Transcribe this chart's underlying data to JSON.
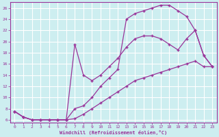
{
  "bg_color": "#cdeef0",
  "grid_color": "#aadddd",
  "line_color": "#993399",
  "xlabel": "Windchill (Refroidissement éolien,°C)",
  "xlim": [
    -0.5,
    23.5
  ],
  "ylim": [
    5.5,
    27
  ],
  "yticks": [
    6,
    8,
    10,
    12,
    14,
    16,
    18,
    20,
    22,
    24,
    26
  ],
  "xticks": [
    0,
    1,
    2,
    3,
    4,
    5,
    6,
    7,
    8,
    9,
    10,
    11,
    12,
    13,
    14,
    15,
    16,
    17,
    18,
    19,
    20,
    21,
    22,
    23
  ],
  "line1_x": [
    0,
    1,
    2,
    3,
    4,
    5,
    6,
    7,
    8,
    9,
    10,
    11,
    12,
    13,
    14,
    15,
    16,
    17,
    18,
    19,
    20,
    21,
    22,
    23
  ],
  "line1_y": [
    7.5,
    6.5,
    6.0,
    6.0,
    6.0,
    6.0,
    6.0,
    6.2,
    7.0,
    8.0,
    9.0,
    10.0,
    11.0,
    12.0,
    13.0,
    13.5,
    14.0,
    14.5,
    15.0,
    15.5,
    16.0,
    16.5,
    15.5,
    15.5
  ],
  "line2_x": [
    0,
    1,
    2,
    3,
    4,
    5,
    6,
    7,
    8,
    9,
    10,
    11,
    12,
    13,
    14,
    15,
    16,
    17,
    18,
    19,
    20,
    21,
    22,
    23
  ],
  "line2_y": [
    7.5,
    6.5,
    6.0,
    6.0,
    6.0,
    6.0,
    6.0,
    19.5,
    14.0,
    13.0,
    14.0,
    15.5,
    17.0,
    19.0,
    20.5,
    21.0,
    21.0,
    20.5,
    19.5,
    18.5,
    20.5,
    22.0,
    17.5,
    15.5
  ],
  "line3_x": [
    0,
    1,
    2,
    3,
    4,
    5,
    6,
    7,
    8,
    9,
    10,
    11,
    12,
    13,
    14,
    15,
    16,
    17,
    18,
    19,
    20,
    21,
    22,
    23
  ],
  "line3_y": [
    7.5,
    6.5,
    6.0,
    6.0,
    6.0,
    6.0,
    6.0,
    8.0,
    8.5,
    10.0,
    12.0,
    13.5,
    15.0,
    24.0,
    25.0,
    25.5,
    26.0,
    26.5,
    26.5,
    25.5,
    24.5,
    22.0,
    17.5,
    15.5
  ]
}
